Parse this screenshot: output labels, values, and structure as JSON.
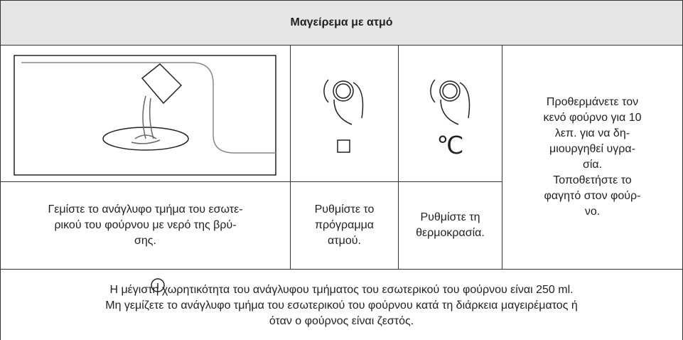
{
  "header": {
    "title": "Μαγείρεμα με ατμό"
  },
  "steps": [
    {
      "caption_lines": [
        "Γεμίστε το ανάγλυφο τμήμα του εσωτε-",
        "ρικού του φούρνου με νερό της βρύ-",
        "σης."
      ]
    },
    {
      "caption_lines": [
        "Ρυθμίστε το",
        "πρόγραμμα",
        "ατμού."
      ]
    },
    {
      "symbol": "℃",
      "caption_lines": [
        "Ρυθμίστε τη",
        "θερμοκρασία."
      ]
    }
  ],
  "side_note_lines": [
    "Προθερμάνετε τον",
    "κενό φούρνο για 10",
    "λεπ. για να δη-",
    "μιουργηθεί υγρα-",
    "σία.",
    "Τοποθετήστε το",
    "φαγητό στον φούρ-",
    "νο."
  ],
  "footer_lines": [
    "Η μέγιστη χωρητικότητα του ανάγλυφου τμήματος του εσωτερικού του φούρνου είναι 250 ml.",
    "Μη γεμίζετε το ανάγλυφο τμήμα του εσωτερικού του φούρνου κατά τη διάρκεια μαγειρέματος ή",
    "όταν ο φούρνος είναι ζεστός."
  ]
}
